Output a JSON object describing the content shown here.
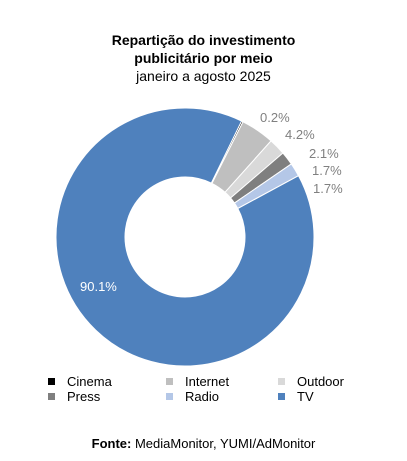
{
  "chart_data": {
    "type": "pie",
    "title": "Repartição do investimento publicitário por meio",
    "title_lines": [
      "Repartição do investimento",
      "publicitário por meio"
    ],
    "subtitle": "janeiro a agosto 2025",
    "donut": true,
    "categories": [
      "Cinema",
      "Internet",
      "Outdoor",
      "Press",
      "Radio",
      "TV"
    ],
    "values": [
      0.2,
      4.2,
      2.1,
      1.7,
      1.7,
      90.1
    ],
    "data_labels": [
      "0.2%",
      "4.2%",
      "2.1%",
      "1.7%",
      "1.7%",
      "90.1%"
    ],
    "colors": [
      "#000000",
      "#bfbfbf",
      "#d9d9d9",
      "#7f7f7f",
      "#b4c7e7",
      "#4f81bd"
    ],
    "label_color": "#808080",
    "tv_label_color": "#ffffff",
    "legend_position": "bottom"
  },
  "source": {
    "label": "Fonte:",
    "text": " MediaMonitor, YUMI/AdMonitor"
  }
}
